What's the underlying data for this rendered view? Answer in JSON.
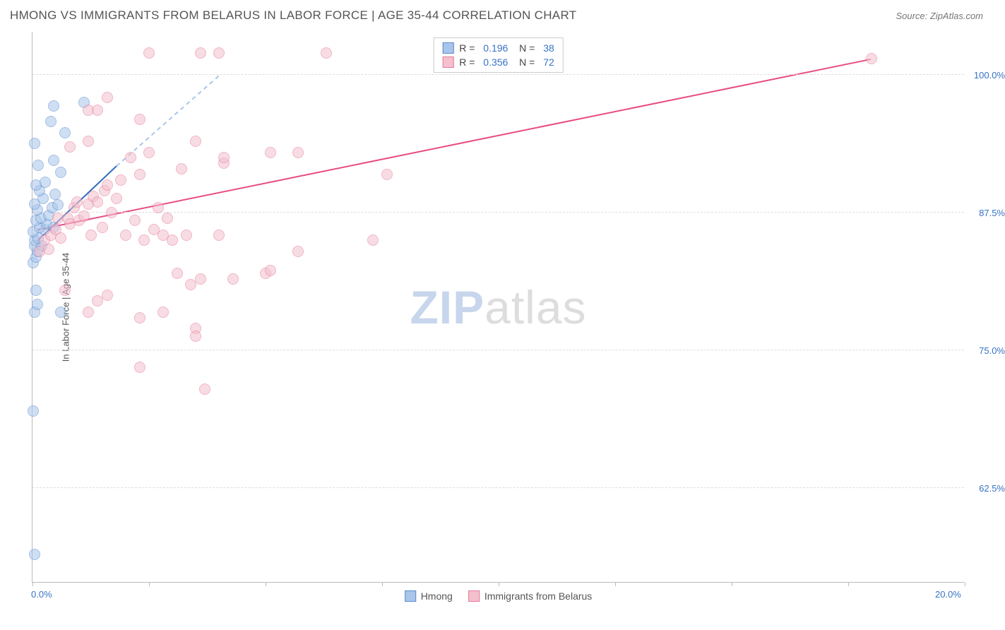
{
  "header": {
    "title": "HMONG VS IMMIGRANTS FROM BELARUS IN LABOR FORCE | AGE 35-44 CORRELATION CHART",
    "source": "Source: ZipAtlas.com"
  },
  "watermark": {
    "part1": "ZIP",
    "part2": "atlas"
  },
  "chart": {
    "type": "scatter",
    "x_domain": [
      0,
      20
    ],
    "y_domain": [
      54,
      104
    ],
    "x_ticks": [
      0,
      2.5,
      5,
      7.5,
      10,
      12.5,
      15,
      17.5,
      20
    ],
    "y_gridlines": [
      62.5,
      75,
      87.5,
      100
    ],
    "x_labels": [
      {
        "v": 0,
        "t": "0.0%"
      },
      {
        "v": 20,
        "t": "20.0%"
      }
    ],
    "y_labels": [
      {
        "v": 62.5,
        "t": "62.5%"
      },
      {
        "v": 75.0,
        "t": "75.0%"
      },
      {
        "v": 87.5,
        "t": "87.5%"
      },
      {
        "v": 100.0,
        "t": "100.0%"
      }
    ],
    "yaxis_title": "In Labor Force | Age 35-44",
    "background_color": "#ffffff",
    "grid_color": "#dddddd",
    "axis_color": "#bbbbbb",
    "label_color": "#3873c4",
    "marker_radius": 8,
    "marker_opacity": 0.55,
    "series": [
      {
        "name": "Hmong",
        "fill": "#a9c5ea",
        "stroke": "#5a8ccf",
        "line_color": "#2e6bbd",
        "line_dash_color": "#a9c5ea",
        "r": 0.196,
        "n": 38,
        "trend_solid": {
          "x1": 0.1,
          "y1": 85.0,
          "x2": 1.8,
          "y2": 91.8
        },
        "trend_dash": {
          "x1": 1.8,
          "y1": 91.8,
          "x2": 4.0,
          "y2": 100.0
        },
        "points": [
          [
            0.05,
            56.5
          ],
          [
            0.02,
            69.5
          ],
          [
            0.05,
            78.5
          ],
          [
            0.1,
            79.2
          ],
          [
            0.08,
            80.5
          ],
          [
            0.02,
            83.0
          ],
          [
            0.07,
            83.5
          ],
          [
            0.1,
            84.0
          ],
          [
            0.04,
            84.5
          ],
          [
            0.2,
            84.5
          ],
          [
            0.05,
            85.0
          ],
          [
            0.12,
            85.2
          ],
          [
            0.02,
            85.8
          ],
          [
            0.25,
            86.0
          ],
          [
            0.15,
            86.2
          ],
          [
            0.3,
            86.5
          ],
          [
            0.08,
            86.8
          ],
          [
            0.45,
            86.2
          ],
          [
            0.18,
            87.0
          ],
          [
            0.35,
            87.3
          ],
          [
            0.1,
            87.8
          ],
          [
            0.42,
            88.0
          ],
          [
            0.05,
            88.3
          ],
          [
            0.55,
            88.2
          ],
          [
            0.22,
            88.8
          ],
          [
            0.15,
            89.5
          ],
          [
            0.48,
            89.2
          ],
          [
            0.07,
            90.0
          ],
          [
            0.28,
            90.3
          ],
          [
            0.6,
            91.2
          ],
          [
            0.12,
            91.8
          ],
          [
            0.45,
            92.3
          ],
          [
            0.05,
            93.8
          ],
          [
            0.7,
            94.8
          ],
          [
            0.4,
            95.8
          ],
          [
            0.45,
            97.2
          ],
          [
            1.1,
            97.5
          ],
          [
            0.6,
            78.5
          ]
        ]
      },
      {
        "name": "Immigrants from Belarus",
        "fill": "#f4c0cd",
        "stroke": "#e57a9a",
        "line_color": "#e84b84",
        "line_dash_color": "#f4c0cd",
        "r": 0.356,
        "n": 72,
        "trend_solid": {
          "x1": 0.1,
          "y1": 86.0,
          "x2": 18.0,
          "y2": 101.5
        },
        "trend_dash": null,
        "points": [
          [
            0.15,
            84.0
          ],
          [
            0.25,
            85.0
          ],
          [
            0.35,
            84.2
          ],
          [
            0.4,
            85.5
          ],
          [
            0.5,
            86.0
          ],
          [
            0.55,
            87.0
          ],
          [
            0.6,
            85.2
          ],
          [
            0.75,
            87.0
          ],
          [
            0.8,
            86.5
          ],
          [
            0.9,
            88.0
          ],
          [
            0.95,
            88.5
          ],
          [
            1.0,
            86.8
          ],
          [
            1.1,
            87.2
          ],
          [
            1.2,
            88.3
          ],
          [
            1.25,
            85.5
          ],
          [
            1.3,
            89.0
          ],
          [
            1.4,
            88.5
          ],
          [
            1.5,
            86.2
          ],
          [
            1.55,
            89.5
          ],
          [
            1.6,
            90.0
          ],
          [
            1.7,
            87.5
          ],
          [
            1.8,
            88.8
          ],
          [
            1.9,
            90.5
          ],
          [
            2.0,
            85.5
          ],
          [
            2.1,
            92.5
          ],
          [
            2.2,
            86.8
          ],
          [
            2.3,
            91.0
          ],
          [
            2.4,
            85.0
          ],
          [
            2.5,
            93.0
          ],
          [
            2.6,
            86.0
          ],
          [
            2.7,
            88.0
          ],
          [
            2.8,
            85.5
          ],
          [
            2.9,
            87.0
          ],
          [
            3.0,
            85.0
          ],
          [
            3.1,
            82.0
          ],
          [
            3.2,
            91.5
          ],
          [
            3.3,
            85.5
          ],
          [
            3.4,
            81.0
          ],
          [
            3.5,
            94.0
          ],
          [
            1.2,
            94.0
          ],
          [
            0.8,
            93.5
          ],
          [
            1.2,
            96.8
          ],
          [
            1.4,
            96.8
          ],
          [
            1.6,
            98.0
          ],
          [
            2.3,
            96.0
          ],
          [
            2.5,
            102.0
          ],
          [
            3.6,
            102.0
          ],
          [
            4.0,
            102.0
          ],
          [
            4.1,
            92.0
          ],
          [
            4.1,
            92.5
          ],
          [
            4.3,
            81.5
          ],
          [
            3.6,
            81.5
          ],
          [
            3.5,
            77.0
          ],
          [
            3.5,
            76.3
          ],
          [
            2.3,
            73.5
          ],
          [
            2.3,
            78.0
          ],
          [
            2.8,
            78.5
          ],
          [
            1.2,
            78.5
          ],
          [
            1.4,
            79.5
          ],
          [
            1.6,
            80.0
          ],
          [
            4.0,
            85.5
          ],
          [
            3.7,
            71.5
          ],
          [
            5.0,
            82.0
          ],
          [
            5.1,
            82.3
          ],
          [
            5.1,
            93.0
          ],
          [
            5.7,
            93.0
          ],
          [
            5.7,
            84.0
          ],
          [
            6.3,
            102.0
          ],
          [
            7.3,
            85.0
          ],
          [
            7.6,
            91.0
          ],
          [
            18.0,
            101.5
          ],
          [
            0.7,
            80.5
          ]
        ]
      }
    ],
    "legend_bottom": [
      {
        "label": "Hmong",
        "fill": "#a9c5ea",
        "stroke": "#5a8ccf"
      },
      {
        "label": "Immigrants from Belarus",
        "fill": "#f4c0cd",
        "stroke": "#e57a9a"
      }
    ]
  }
}
